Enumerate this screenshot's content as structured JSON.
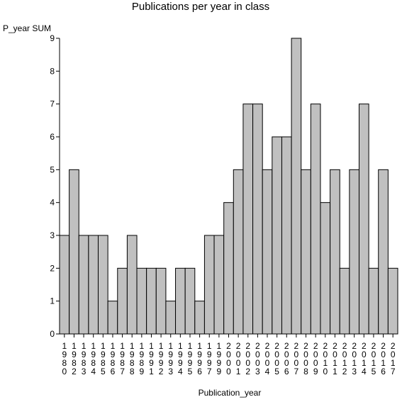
{
  "chart_data": {
    "type": "bar",
    "title": "Publications per year in class",
    "ylabel": "P_year SUM",
    "xlabel": "Publication_year",
    "ylim": [
      0,
      9
    ],
    "yticks": [
      0,
      1,
      2,
      3,
      4,
      5,
      6,
      7,
      8,
      9
    ],
    "grid": false,
    "bar_color": "#c0c0c0",
    "categories": [
      "1980",
      "1982",
      "1983",
      "1984",
      "1985",
      "1986",
      "1987",
      "1988",
      "1989",
      "1991",
      "1992",
      "1993",
      "1994",
      "1995",
      "1996",
      "1997",
      "1999",
      "2000",
      "2001",
      "2002",
      "2003",
      "2004",
      "2005",
      "2006",
      "2007",
      "2008",
      "2009",
      "2010",
      "2011",
      "2012",
      "2013",
      "2014",
      "2015",
      "2016",
      "2017"
    ],
    "values": [
      3,
      5,
      3,
      3,
      3,
      1,
      2,
      3,
      2,
      2,
      2,
      1,
      2,
      2,
      1,
      3,
      3,
      4,
      5,
      7,
      7,
      5,
      6,
      6,
      9,
      5,
      7,
      4,
      5,
      2,
      5,
      7,
      2,
      5,
      2
    ]
  }
}
